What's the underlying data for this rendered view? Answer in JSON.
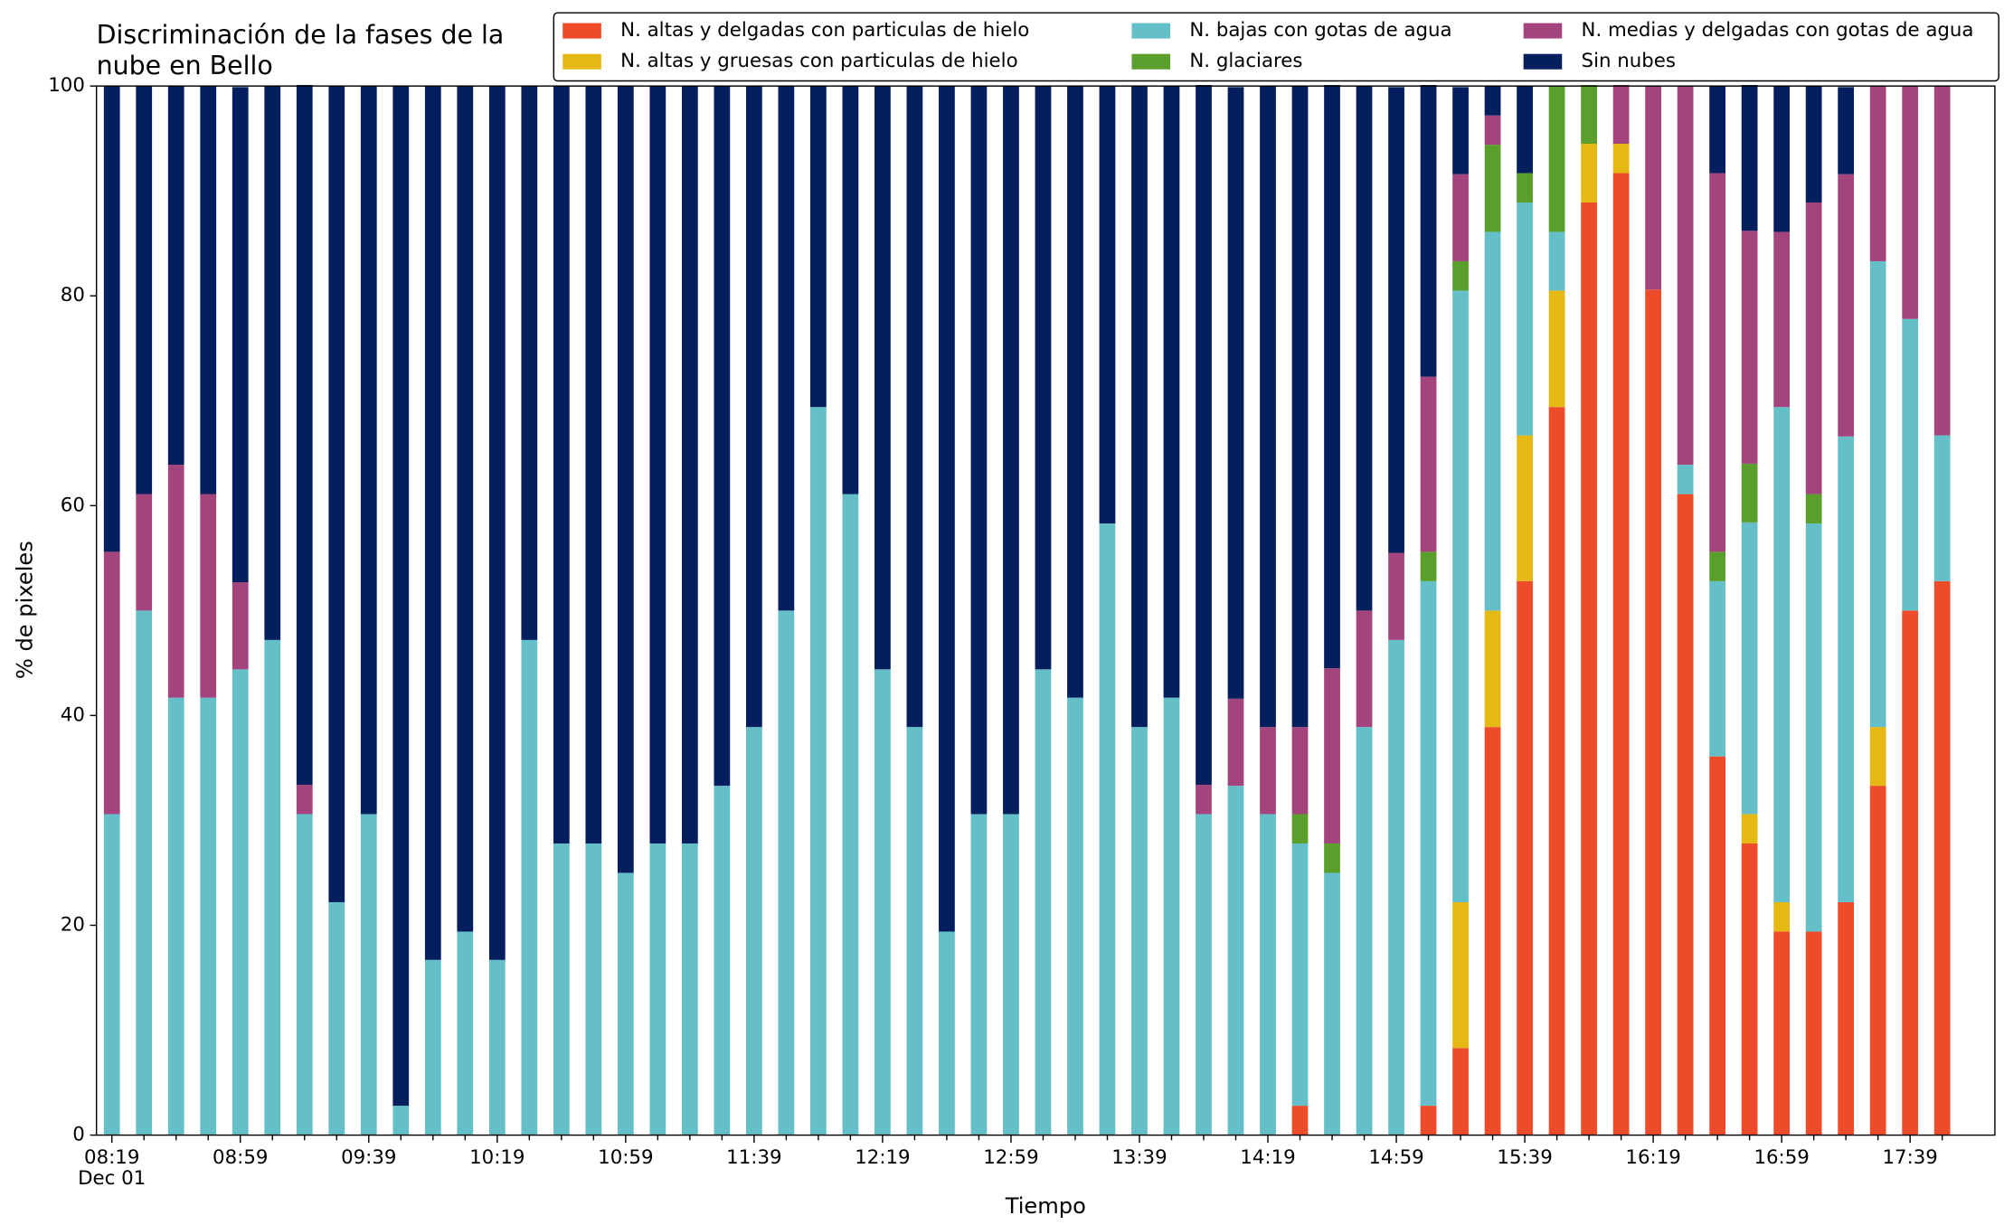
{
  "chart_data": {
    "type": "stacked_bar",
    "title": "Discriminación de la fases de la\nnube en Bello",
    "xlabel": "Tiempo",
    "ylabel": "% de pixeles",
    "categories": [
      "08:19",
      null,
      null,
      null,
      "08:59",
      null,
      null,
      null,
      "09:39",
      null,
      null,
      null,
      "10:19",
      null,
      null,
      null,
      "10:59",
      null,
      null,
      null,
      "11:39",
      null,
      null,
      null,
      "12:19",
      null,
      null,
      null,
      "12:59",
      null,
      null,
      null,
      "13:39",
      null,
      null,
      null,
      "14:19",
      null,
      null,
      null,
      "14:59",
      null,
      null,
      null,
      "15:39",
      null,
      null,
      null,
      "16:19",
      null,
      null,
      null,
      "16:59",
      null,
      null,
      null,
      "17:39",
      null
    ],
    "x_sublabel": "Dec 01",
    "ylim": [
      0,
      100
    ],
    "yticks": [
      0,
      20,
      40,
      60,
      80,
      100
    ],
    "grid": false,
    "series": [
      {
        "name": "N. altas y delgadas con particulas de hielo",
        "color": "#ee4b2b",
        "values": [
          0,
          0,
          0,
          0,
          0,
          0,
          0,
          0,
          0,
          0,
          0,
          0,
          0,
          0,
          0,
          0,
          0,
          0,
          0,
          0,
          0,
          0,
          0,
          0,
          0,
          0,
          0,
          0,
          0,
          0,
          0,
          0,
          0,
          0,
          0,
          0,
          0,
          2.8,
          0,
          0,
          0,
          2.8,
          8.3,
          38.9,
          52.8,
          69.4,
          88.9,
          91.7,
          80.6,
          61.1,
          36.1,
          27.8,
          19.4,
          19.4,
          22.2,
          33.3,
          50,
          52.8
        ]
      },
      {
        "name": "N. altas y gruesas con particulas de hielo",
        "color": "#e5b814",
        "values": [
          0,
          0,
          0,
          0,
          0,
          0,
          0,
          0,
          0,
          0,
          0,
          0,
          0,
          0,
          0,
          0,
          0,
          0,
          0,
          0,
          0,
          0,
          0,
          0,
          0,
          0,
          0,
          0,
          0,
          0,
          0,
          0,
          0,
          0,
          0,
          0,
          0,
          0,
          0,
          0,
          0,
          0,
          13.9,
          11.1,
          13.9,
          11.1,
          5.6,
          2.8,
          0,
          0,
          0,
          2.8,
          2.8,
          0,
          0,
          5.6,
          0,
          0
        ]
      },
      {
        "name": "N. bajas con gotas de agua",
        "color": "#65bfc9",
        "values": [
          30.6,
          50,
          41.7,
          41.7,
          44.4,
          47.2,
          30.6,
          22.2,
          30.6,
          2.8,
          16.7,
          19.4,
          16.7,
          47.2,
          27.8,
          27.8,
          25,
          27.8,
          27.8,
          33.3,
          38.9,
          50,
          69.4,
          61.1,
          44.4,
          38.9,
          19.4,
          30.6,
          30.6,
          44.4,
          41.7,
          58.3,
          38.9,
          41.7,
          30.6,
          33.3,
          30.6,
          25,
          25,
          38.9,
          47.2,
          50,
          58.3,
          36.1,
          22.2,
          5.6,
          0,
          0,
          0,
          2.8,
          16.7,
          27.8,
          47.2,
          38.9,
          44.4,
          44.4,
          27.8,
          13.9
        ]
      },
      {
        "name": "N. glaciares",
        "color": "#5a9e2c",
        "values": [
          0,
          0,
          0,
          0,
          0,
          0,
          0,
          0,
          0,
          0,
          0,
          0,
          0,
          0,
          0,
          0,
          0,
          0,
          0,
          0,
          0,
          0,
          0,
          0,
          0,
          0,
          0,
          0,
          0,
          0,
          0,
          0,
          0,
          0,
          0,
          0,
          0,
          2.8,
          2.8,
          0,
          0,
          2.8,
          2.8,
          8.3,
          2.8,
          13.9,
          5.6,
          0,
          0,
          0,
          2.8,
          5.6,
          0,
          2.8,
          0,
          0,
          0,
          0
        ]
      },
      {
        "name": "N. medias y delgadas con gotas de agua",
        "color": "#a3457c",
        "values": [
          25,
          11.1,
          22.2,
          19.4,
          8.3,
          0,
          2.8,
          0,
          0,
          0,
          0,
          0,
          0,
          0,
          0,
          0,
          0,
          0,
          0,
          0,
          0,
          0,
          0,
          0,
          0,
          0,
          0,
          0,
          0,
          0,
          0,
          0,
          0,
          0,
          2.8,
          8.3,
          8.3,
          8.3,
          16.7,
          11.1,
          8.3,
          16.7,
          8.3,
          2.8,
          0,
          0,
          0,
          5.6,
          19.4,
          36.1,
          36.1,
          22.2,
          16.7,
          27.8,
          25,
          16.7,
          22.2,
          33.3
        ]
      },
      {
        "name": "Sin nubes",
        "color": "#041e5e",
        "values": [
          44.4,
          38.9,
          36.1,
          38.9,
          47.2,
          52.8,
          66.7,
          77.8,
          69.4,
          97.2,
          83.3,
          80.6,
          83.3,
          52.8,
          72.2,
          72.2,
          75,
          72.2,
          72.2,
          66.7,
          61.1,
          50,
          30.6,
          38.9,
          55.6,
          61.1,
          80.6,
          69.4,
          69.4,
          55.6,
          58.3,
          41.7,
          61.1,
          58.3,
          66.7,
          58.3,
          61.1,
          61.1,
          55.6,
          50,
          44.4,
          27.8,
          8.3,
          2.8,
          8.3,
          0,
          0,
          0,
          0,
          0,
          8.3,
          13.9,
          13.9,
          11.1,
          8.3,
          0,
          0,
          0
        ]
      }
    ]
  }
}
